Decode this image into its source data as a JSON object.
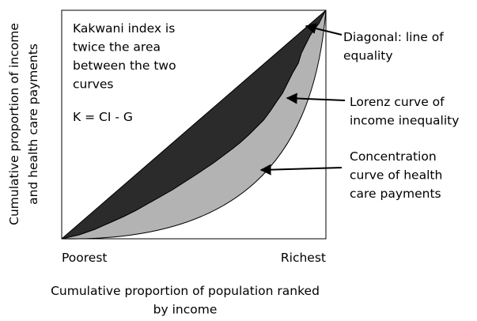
{
  "plot": {
    "y_axis_label": [
      "Cumulative proportion of income",
      "and health care payments"
    ],
    "x_axis_label": [
      "Cumulative proportion of population ranked",
      "by income"
    ],
    "x_start_label": "Poorest",
    "x_end_label": "Richest"
  },
  "annotations": {
    "kakwani": [
      "Kakwani index is",
      "twice the area",
      "between the two",
      "curves"
    ],
    "formula": "K = CI - G",
    "diagonal": [
      "Diagonal: line of",
      "equality"
    ],
    "lorenz": [
      "Lorenz curve of",
      "income inequality"
    ],
    "concentration": [
      "Concentration",
      "curve of health",
      "care payments"
    ]
  }
}
